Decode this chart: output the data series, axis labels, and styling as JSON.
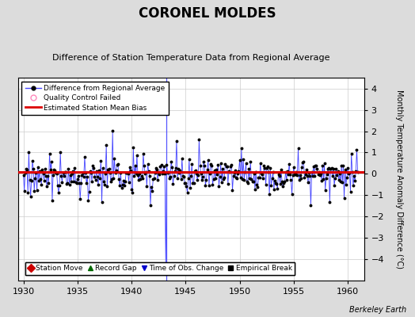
{
  "title": "CORONEL MOLDES",
  "subtitle": "Difference of Station Temperature Data from Regional Average",
  "ylabel": "Monthly Temperature Anomaly Difference (°C)",
  "xlim": [
    1929.5,
    1961.5
  ],
  "ylim": [
    -5,
    4.5
  ],
  "yticks": [
    -4,
    -3,
    -2,
    -1,
    0,
    1,
    2,
    3,
    4
  ],
  "xticks": [
    1930,
    1935,
    1940,
    1945,
    1950,
    1955,
    1960
  ],
  "bias_value": 0.08,
  "time_of_obs_change_year": 1943.2,
  "background_color": "#dcdcdc",
  "plot_bg_color": "#ffffff",
  "line_color": "#4444ff",
  "bias_color": "#dd0000",
  "watermark": "Berkeley Earth",
  "seed": 17
}
